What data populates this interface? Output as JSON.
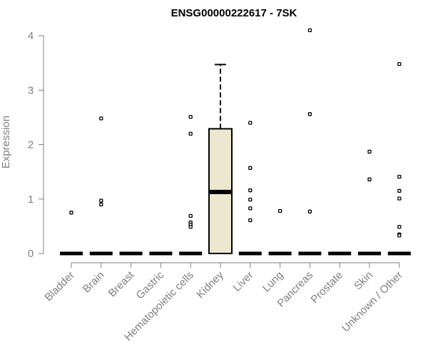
{
  "chart_data": {
    "type": "box",
    "title": "ENSG00000222617 - 7SK",
    "xlabel": "",
    "ylabel": "Expression",
    "ylim": [
      0,
      4
    ],
    "yticks": [
      "0",
      "1",
      "2",
      "3",
      "4"
    ],
    "grid": false,
    "categories": [
      "Bladder",
      "Brain",
      "Breast",
      "Gastric",
      "Hematopoietic cells",
      "Kidney",
      "Liver",
      "Lung",
      "Pancreas",
      "Prostate",
      "Skin",
      "Unknown / Other"
    ],
    "boxes": [
      {
        "category": "Bladder",
        "min": 0,
        "q1": 0,
        "median": 0,
        "q3": 0,
        "max": 0,
        "outliers": [
          0.75
        ]
      },
      {
        "category": "Brain",
        "min": 0,
        "q1": 0,
        "median": 0,
        "q3": 0,
        "max": 0,
        "outliers": [
          2.48,
          0.97,
          0.9
        ]
      },
      {
        "category": "Breast",
        "min": 0,
        "q1": 0,
        "median": 0,
        "q3": 0,
        "max": 0,
        "outliers": []
      },
      {
        "category": "Gastric",
        "min": 0,
        "q1": 0,
        "median": 0,
        "q3": 0,
        "max": 0,
        "outliers": []
      },
      {
        "category": "Hematopoietic cells",
        "min": 0,
        "q1": 0,
        "median": 0,
        "q3": 0,
        "max": 0,
        "outliers": [
          2.51,
          2.2,
          0.69,
          0.57,
          0.53,
          0.49
        ]
      },
      {
        "category": "Kidney",
        "min": 0,
        "q1": 0,
        "median": 1.13,
        "q3": 2.29,
        "max": 3.47,
        "outliers": []
      },
      {
        "category": "Liver",
        "min": 0,
        "q1": 0,
        "median": 0,
        "q3": 0,
        "max": 0,
        "outliers": [
          2.4,
          1.57,
          1.16,
          0.99,
          0.83,
          0.61
        ]
      },
      {
        "category": "Lung",
        "min": 0,
        "q1": 0,
        "median": 0,
        "q3": 0,
        "max": 0,
        "outliers": [
          0.78
        ]
      },
      {
        "category": "Pancreas",
        "min": 0,
        "q1": 0,
        "median": 0,
        "q3": 0,
        "max": 0,
        "outliers": [
          4.1,
          2.56,
          0.77
        ]
      },
      {
        "category": "Prostate",
        "min": 0,
        "q1": 0,
        "median": 0,
        "q3": 0,
        "max": 0,
        "outliers": []
      },
      {
        "category": "Skin",
        "min": 0,
        "q1": 0,
        "median": 0,
        "q3": 0,
        "max": 0,
        "outliers": [
          1.87,
          1.36
        ]
      },
      {
        "category": "Unknown / Other",
        "min": 0,
        "q1": 0,
        "median": 0,
        "q3": 0,
        "max": 0,
        "outliers": [
          3.48,
          1.41,
          1.15,
          1.01,
          0.49,
          0.35,
          0.33
        ]
      }
    ],
    "colors": {
      "box_fill": "#ede7cf",
      "box_stroke": "#000000",
      "axis": "#808080",
      "outlier": "#000000"
    }
  }
}
